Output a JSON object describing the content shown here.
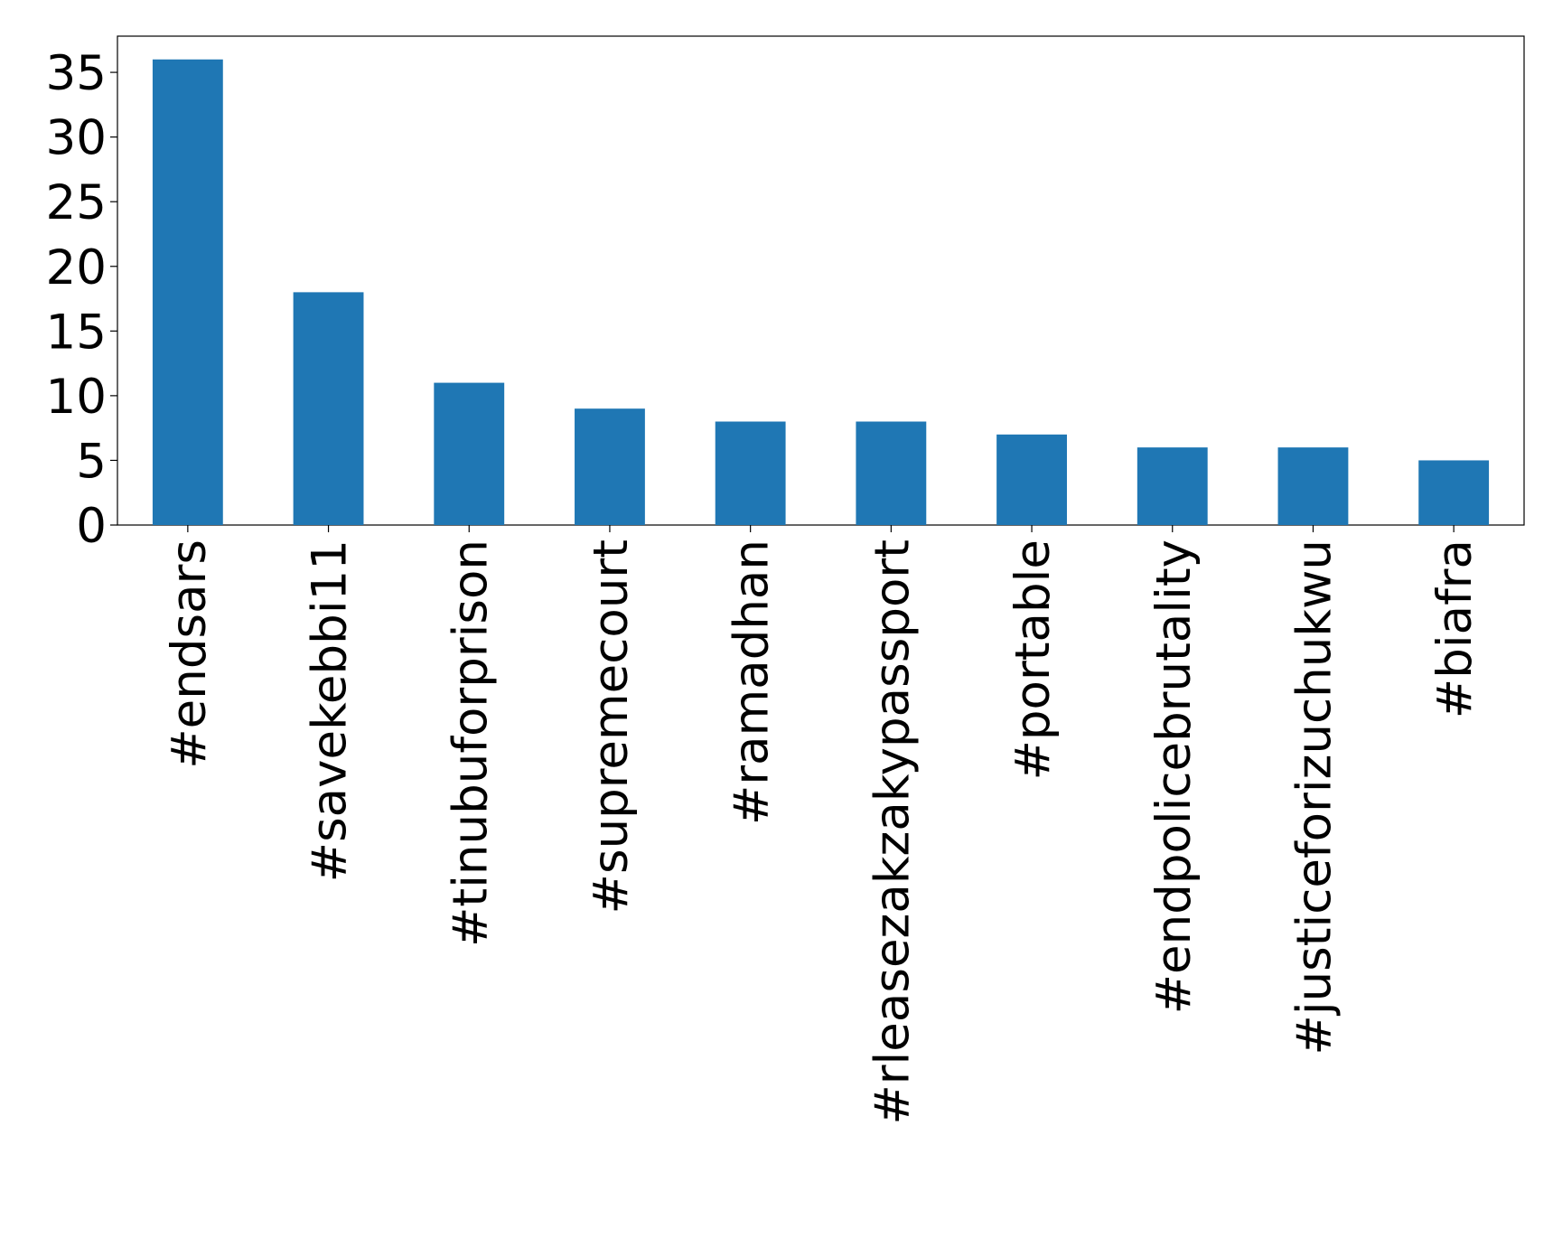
{
  "chart_data": {
    "type": "bar",
    "categories": [
      "#endsars",
      "#savekebbi11",
      "#tinubuforprison",
      "#supremecourt",
      "#ramadhan",
      "#rleasezakzakypassport",
      "#portable",
      "#endpolicebrutality",
      "#justiceforizuchukwu",
      "#biafra"
    ],
    "values": [
      36,
      18,
      11,
      9,
      8,
      8,
      7,
      6,
      6,
      5
    ],
    "color": "#1f77b4",
    "ylim": [
      0,
      37.8
    ],
    "yticks": [
      0,
      5,
      10,
      15,
      20,
      25,
      30,
      35
    ],
    "grid": false
  }
}
